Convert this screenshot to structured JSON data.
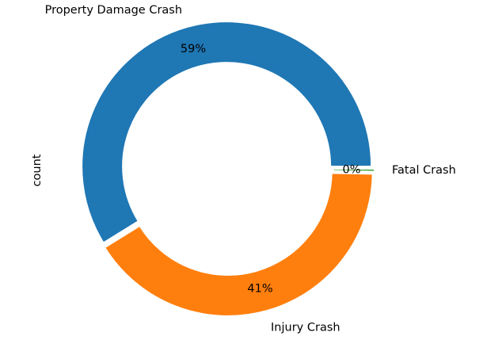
{
  "chart_data": {
    "type": "pie",
    "style": "donut",
    "ylabel": "count",
    "slices": [
      {
        "label": "Property Damage Crash",
        "value": 59,
        "percent_label": "59%",
        "color": "#1f77b4"
      },
      {
        "label": "Injury Crash",
        "value": 41,
        "percent_label": "41%",
        "color": "#ff7f0e"
      },
      {
        "label": "Fatal Crash",
        "value": 0.3,
        "percent_label": "0%",
        "color": "#2ca02c"
      }
    ]
  }
}
